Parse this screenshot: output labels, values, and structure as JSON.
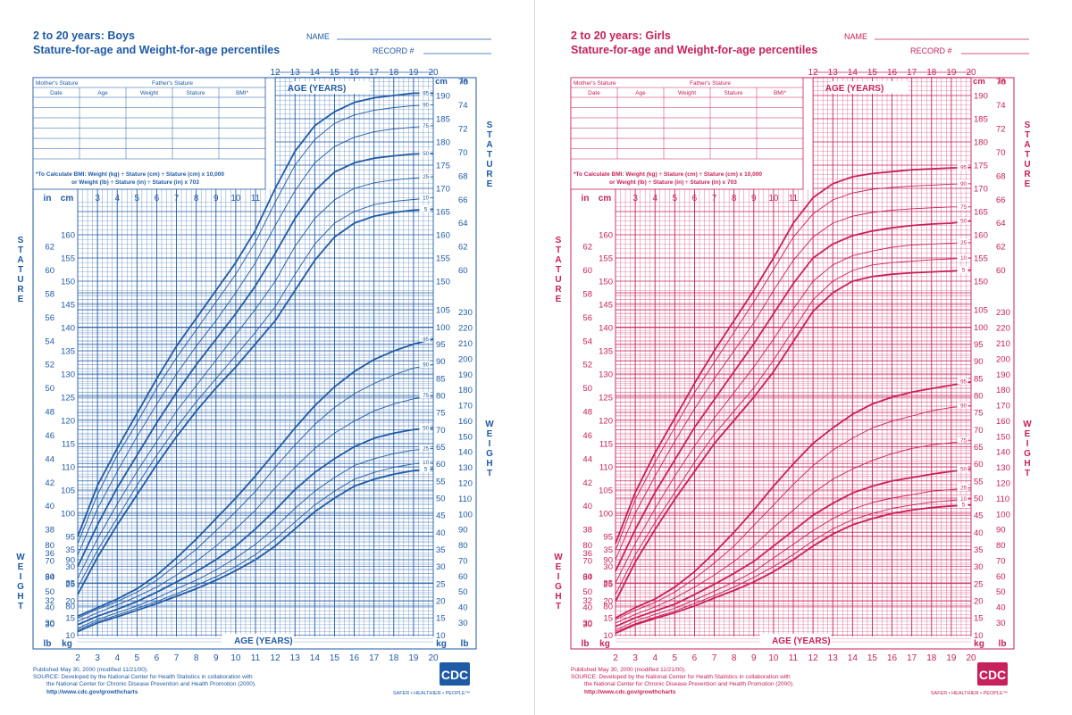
{
  "chart_data": [
    {
      "type": "line",
      "subject": "boys",
      "color": "#1f5aa6",
      "title": "2 to 20 years: Boys",
      "subtitle": "Stature-for-age and Weight-for-age percentiles",
      "name_label": "NAME",
      "record_label": "RECORD #",
      "xlabel": "AGE (YEARS)",
      "xlim": [
        2,
        20
      ],
      "stature_label": "STATURE",
      "weight_label": "WEIGHT",
      "units": {
        "in": "in",
        "cm": "cm",
        "lb": "lb",
        "kg": "kg"
      },
      "table_headers": {
        "mothers_stature": "Mother's Stature",
        "fathers_stature": "Father's Stature",
        "columns": [
          "Date",
          "Age",
          "Weight",
          "Stature",
          "BMI*"
        ]
      },
      "bmi_note_1": "*To Calculate BMI: Weight (kg) ÷ Stature (cm) ÷ Stature (cm) x 10,000",
      "bmi_note_2": "or Weight (lb) ÷ Stature (in) ÷ Stature (in) x 703",
      "published": "Published May 30, 2000 (modified 11/21/00).",
      "source_1": "SOURCE: Developed by the National Center for Health Statistics in collaboration with",
      "source_2": "the National Center for Chronic Disease Prevention and Health Promotion (2000).",
      "url": "http://www.cdc.gov/growthcharts",
      "logo_text": "CDC",
      "tagline": "SAFER • HEALTHIER • PEOPLE™",
      "stature_percentiles": [
        {
          "name": "95",
          "values": [
            95.0,
            106.0,
            114.0,
            121.5,
            129.0,
            136.0,
            142.0,
            148.0,
            154.0,
            161.0,
            170.0,
            178.0,
            183.5,
            186.5,
            188.5,
            189.5,
            190.0,
            190.5,
            190.5
          ]
        },
        {
          "name": "90",
          "values": [
            93.5,
            104.0,
            112.5,
            119.5,
            127.0,
            133.5,
            139.5,
            145.5,
            151.5,
            158.5,
            167.0,
            175.0,
            180.5,
            184.0,
            185.8,
            186.8,
            187.4,
            187.8,
            188.0
          ]
        },
        {
          "name": "75",
          "values": [
            91.0,
            101.0,
            109.0,
            116.5,
            123.5,
            130.0,
            136.0,
            141.5,
            147.5,
            154.0,
            162.0,
            169.5,
            175.5,
            179.0,
            181.0,
            182.2,
            182.8,
            183.2,
            183.5
          ]
        },
        {
          "name": "50",
          "values": [
            88.5,
            97.5,
            105.5,
            112.5,
            119.5,
            126.0,
            132.0,
            137.5,
            143.0,
            149.0,
            156.0,
            163.5,
            169.5,
            173.5,
            175.5,
            176.5,
            177.0,
            177.4,
            177.5
          ]
        },
        {
          "name": "25",
          "values": [
            86.0,
            94.5,
            102.0,
            109.0,
            115.5,
            122.0,
            127.5,
            133.0,
            138.5,
            144.0,
            150.0,
            157.5,
            163.5,
            167.5,
            170.0,
            171.2,
            171.8,
            172.2,
            172.5
          ]
        },
        {
          "name": "10",
          "values": [
            84.0,
            92.0,
            99.0,
            106.0,
            112.5,
            118.5,
            124.0,
            129.0,
            134.0,
            139.0,
            144.5,
            151.5,
            158.0,
            162.5,
            165.0,
            166.5,
            167.2,
            167.6,
            168.0
          ]
        },
        {
          "name": "5",
          "values": [
            82.5,
            90.5,
            97.5,
            104.0,
            110.5,
            116.5,
            122.0,
            127.0,
            131.5,
            136.5,
            141.5,
            148.0,
            154.5,
            159.5,
            162.5,
            164.0,
            164.8,
            165.3,
            165.5
          ]
        }
      ],
      "weight_percentiles": [
        {
          "name": "95",
          "values": [
            15.5,
            18.0,
            20.5,
            23.5,
            27.5,
            32.5,
            38.0,
            44.0,
            50.0,
            56.5,
            63.5,
            70.5,
            77.0,
            82.5,
            87.0,
            90.5,
            93.0,
            95.0,
            96.5
          ]
        },
        {
          "name": "90",
          "values": [
            15.0,
            17.5,
            19.8,
            22.5,
            26.0,
            30.5,
            35.0,
            40.5,
            46.0,
            52.0,
            59.0,
            65.5,
            71.5,
            76.5,
            80.5,
            83.5,
            86.0,
            88.0,
            89.0
          ]
        },
        {
          "name": "75",
          "values": [
            14.0,
            16.5,
            18.8,
            21.2,
            24.0,
            27.5,
            31.5,
            36.0,
            41.0,
            46.5,
            53.0,
            59.0,
            64.5,
            69.0,
            72.5,
            75.5,
            77.5,
            79.0,
            80.0
          ]
        },
        {
          "name": "50",
          "values": [
            13.0,
            15.5,
            17.5,
            19.8,
            22.5,
            25.5,
            28.5,
            32.0,
            36.0,
            41.0,
            46.5,
            52.5,
            57.5,
            61.5,
            65.0,
            67.5,
            69.0,
            70.0,
            70.5
          ]
        },
        {
          "name": "25",
          "values": [
            12.0,
            14.5,
            16.5,
            18.5,
            20.8,
            23.5,
            26.0,
            29.0,
            32.5,
            36.5,
            41.5,
            47.0,
            52.0,
            56.0,
            59.5,
            61.5,
            63.0,
            64.0,
            64.5
          ]
        },
        {
          "name": "10",
          "values": [
            11.5,
            14.0,
            15.8,
            17.8,
            19.8,
            22.0,
            24.5,
            27.0,
            30.0,
            33.5,
            38.0,
            43.0,
            48.0,
            52.0,
            55.5,
            57.5,
            59.0,
            60.0,
            60.5
          ]
        },
        {
          "name": "5",
          "values": [
            11.0,
            13.5,
            15.3,
            17.2,
            19.2,
            21.3,
            23.5,
            26.0,
            28.8,
            32.0,
            36.0,
            41.0,
            46.0,
            50.0,
            53.5,
            55.5,
            57.0,
            58.0,
            58.5
          ]
        }
      ]
    },
    {
      "type": "line",
      "subject": "girls",
      "color": "#c8205a",
      "title": "2 to 20 years: Girls",
      "subtitle": "Stature-for-age and Weight-for-age percentiles",
      "name_label": "NAME",
      "record_label": "RECORD #",
      "xlabel": "AGE (YEARS)",
      "xlim": [
        2,
        20
      ],
      "stature_label": "STATURE",
      "weight_label": "WEIGHT",
      "units": {
        "in": "in",
        "cm": "cm",
        "lb": "lb",
        "kg": "kg"
      },
      "table_headers": {
        "mothers_stature": "Mother's Stature",
        "fathers_stature": "Father's Stature",
        "columns": [
          "Date",
          "Age",
          "Weight",
          "Stature",
          "BMI*"
        ]
      },
      "bmi_note_1": "*To Calculate BMI: Weight (kg) ÷ Stature (cm) ÷ Stature (cm) x 10,000",
      "bmi_note_2": "or Weight (lb) ÷ Stature (in) ÷ Stature (in) x 703",
      "published": "Published May 30, 2000 (modified 11/21/00).",
      "source_1": "SOURCE: Developed by the National Center for Health Statistics in collaboration with",
      "source_2": "the National Center for Chronic Disease Prevention and Health Promotion (2000).",
      "url": "http://www.cdc.gov/growthcharts",
      "logo_text": "CDC",
      "tagline": "SAFER • HEALTHIER • PEOPLE™",
      "stature_percentiles": [
        {
          "name": "95",
          "values": [
            93.5,
            104.5,
            113.0,
            120.5,
            128.0,
            135.0,
            141.5,
            148.0,
            155.0,
            162.5,
            168.0,
            171.0,
            172.5,
            173.2,
            173.6,
            174.0,
            174.2,
            174.4,
            174.5
          ]
        },
        {
          "name": "90",
          "values": [
            92.0,
            103.0,
            111.0,
            118.5,
            126.0,
            132.5,
            139.0,
            145.5,
            152.5,
            159.5,
            164.5,
            167.5,
            169.0,
            169.8,
            170.2,
            170.5,
            170.7,
            170.9,
            171.0
          ]
        },
        {
          "name": "75",
          "values": [
            90.0,
            100.0,
            108.0,
            115.5,
            122.5,
            129.0,
            135.0,
            141.0,
            148.0,
            154.5,
            159.5,
            162.5,
            164.0,
            164.8,
            165.3,
            165.6,
            165.8,
            166.0,
            166.0
          ]
        },
        {
          "name": "50",
          "values": [
            87.5,
            96.5,
            104.5,
            111.5,
            118.5,
            124.5,
            130.5,
            136.5,
            143.0,
            149.5,
            155.0,
            158.0,
            159.8,
            160.8,
            161.5,
            162.0,
            162.3,
            162.5,
            163.0
          ]
        },
        {
          "name": "25",
          "values": [
            85.0,
            93.5,
            101.0,
            108.0,
            114.5,
            120.5,
            126.0,
            131.5,
            137.5,
            144.0,
            150.0,
            153.5,
            155.5,
            156.5,
            157.3,
            157.8,
            158.0,
            158.2,
            158.3
          ]
        },
        {
          "name": "10",
          "values": [
            82.5,
            91.0,
            98.0,
            104.5,
            111.0,
            117.0,
            122.0,
            127.0,
            133.0,
            139.5,
            146.0,
            150.0,
            152.3,
            153.5,
            154.0,
            154.3,
            154.6,
            154.8,
            155.0
          ]
        },
        {
          "name": "5",
          "values": [
            81.0,
            89.5,
            96.5,
            103.0,
            109.0,
            115.0,
            120.0,
            125.0,
            130.5,
            137.0,
            143.5,
            147.5,
            150.0,
            151.0,
            151.5,
            151.8,
            152.0,
            152.2,
            152.4
          ]
        }
      ],
      "weight_percentiles": [
        {
          "name": "95",
          "values": [
            15.0,
            18.0,
            20.5,
            24.0,
            28.5,
            34.0,
            40.0,
            46.5,
            53.5,
            60.0,
            66.0,
            70.5,
            74.5,
            77.5,
            79.5,
            81.0,
            82.0,
            83.0,
            84.0
          ]
        },
        {
          "name": "90",
          "values": [
            14.5,
            17.2,
            19.5,
            22.5,
            26.5,
            31.0,
            36.0,
            42.0,
            48.0,
            54.0,
            59.5,
            64.0,
            67.5,
            70.5,
            72.5,
            74.0,
            75.5,
            76.5,
            77.0
          ]
        },
        {
          "name": "75",
          "values": [
            13.5,
            16.0,
            18.2,
            20.8,
            24.0,
            27.5,
            31.5,
            36.0,
            41.5,
            46.5,
            51.5,
            55.5,
            58.5,
            61.0,
            63.0,
            64.5,
            65.5,
            66.2,
            66.8
          ]
        },
        {
          "name": "50",
          "values": [
            12.5,
            15.0,
            17.0,
            19.0,
            21.8,
            24.8,
            28.0,
            31.5,
            36.0,
            40.5,
            45.0,
            48.5,
            51.5,
            53.5,
            55.0,
            56.0,
            57.0,
            57.8,
            58.5
          ]
        },
        {
          "name": "25",
          "values": [
            11.5,
            14.0,
            16.0,
            17.8,
            20.2,
            22.8,
            25.5,
            28.5,
            32.5,
            36.5,
            40.5,
            44.0,
            46.8,
            48.7,
            50.0,
            51.0,
            52.0,
            52.5,
            53.0
          ]
        },
        {
          "name": "10",
          "values": [
            11.0,
            13.3,
            15.2,
            17.0,
            19.2,
            21.5,
            24.0,
            26.8,
            30.0,
            33.5,
            37.5,
            41.0,
            43.7,
            45.5,
            47.0,
            48.0,
            48.8,
            49.3,
            49.8
          ]
        },
        {
          "name": "5",
          "values": [
            10.5,
            13.0,
            14.8,
            16.5,
            18.5,
            20.8,
            23.0,
            25.5,
            28.5,
            32.0,
            36.0,
            39.5,
            42.2,
            44.0,
            45.5,
            46.5,
            47.2,
            47.7,
            48.0
          ]
        }
      ]
    }
  ]
}
